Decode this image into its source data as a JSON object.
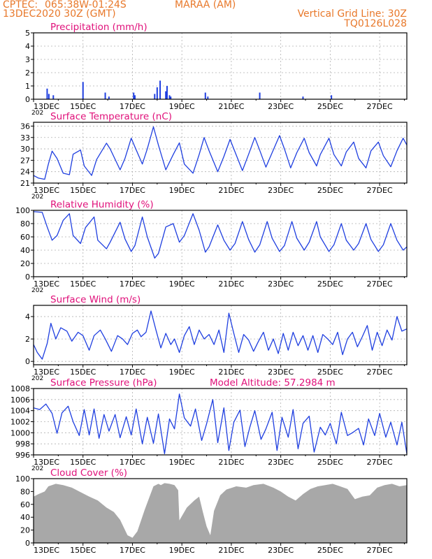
{
  "header": {
    "source": "CPTEC:",
    "coords": "065:38W-01:24S",
    "location": "MARAA (AM)",
    "init_time": "13DEC2020 30Z (GMT)",
    "vgrid": "Vertical Grid Line: 30Z",
    "code": "TQ0126L028"
  },
  "colors": {
    "header": "#e8782a",
    "title": "#e0107a",
    "series": "#1f3fe0",
    "cloud": "#a8a8a8",
    "grid": "#b0b0b0"
  },
  "x_axis": {
    "tick_labels": [
      "13DEC",
      "15DEC",
      "17DEC",
      "19DEC",
      "21DEC",
      "23DEC",
      "25DEC",
      "27DEC"
    ],
    "tick_days": [
      13,
      15,
      17,
      19,
      21,
      23,
      25,
      27
    ],
    "range_days": [
      13,
      28.1
    ],
    "year_fragment": "202"
  },
  "chart_data": [
    {
      "type": "bar",
      "title": "Precipitation (mm/h)",
      "ylim": [
        0,
        5
      ],
      "yticks": [
        0,
        1,
        2,
        3,
        4,
        5
      ],
      "grid": true,
      "x": [
        13.55,
        13.62,
        13.8,
        15.0,
        15.9,
        16.05,
        17.05,
        17.1,
        17.9,
        18.0,
        18.12,
        18.35,
        18.4,
        18.5,
        18.55,
        19.95,
        20.05,
        22.15,
        23.9,
        25.05
      ],
      "values": [
        0.8,
        0.4,
        0.3,
        1.3,
        0.5,
        0.2,
        0.5,
        0.3,
        0.4,
        0.9,
        1.4,
        0.6,
        1.0,
        0.3,
        0.2,
        0.5,
        0.2,
        0.5,
        0.2,
        0.3
      ]
    },
    {
      "type": "line",
      "title": "Surface Temperature (nC)",
      "ylim": [
        21,
        37
      ],
      "yticks": [
        21,
        24,
        27,
        30,
        33,
        36
      ],
      "grid": true,
      "x": [
        13.0,
        13.2,
        13.45,
        13.6,
        13.75,
        13.95,
        14.2,
        14.45,
        14.6,
        14.9,
        15.05,
        15.35,
        15.55,
        15.95,
        16.1,
        16.5,
        16.7,
        16.95,
        17.1,
        17.4,
        17.6,
        17.85,
        18.05,
        18.35,
        18.65,
        18.9,
        19.1,
        19.45,
        19.7,
        19.9,
        20.1,
        20.45,
        20.7,
        20.95,
        21.15,
        21.45,
        21.7,
        21.95,
        22.15,
        22.4,
        22.65,
        22.95,
        23.15,
        23.4,
        23.65,
        23.95,
        24.15,
        24.45,
        24.6,
        24.95,
        25.15,
        25.45,
        25.65,
        25.95,
        26.15,
        26.45,
        26.65,
        26.95,
        27.15,
        27.45,
        27.7,
        27.95,
        28.1
      ],
      "values": [
        23.0,
        22.3,
        22.0,
        26.0,
        29.4,
        27.5,
        23.6,
        23.2,
        28.6,
        29.7,
        25.5,
        23.0,
        27.2,
        31.5,
        30.0,
        24.5,
        27.5,
        32.8,
        30.5,
        26.0,
        30.0,
        35.8,
        31.0,
        24.5,
        28.5,
        31.6,
        26.0,
        23.6,
        28.5,
        33.0,
        29.5,
        24.0,
        28.0,
        32.5,
        29.2,
        24.3,
        28.6,
        33.0,
        29.6,
        25.2,
        29.0,
        33.5,
        30.0,
        25.0,
        29.0,
        32.8,
        29.0,
        25.5,
        28.5,
        32.8,
        28.5,
        25.5,
        29.2,
        31.8,
        27.5,
        25.0,
        29.5,
        31.8,
        28.2,
        25.3,
        29.5,
        32.8,
        31.0
      ]
    },
    {
      "type": "line",
      "title": "Relative Humidity (%)",
      "ylim": [
        0,
        100
      ],
      "yticks": [
        0,
        20,
        40,
        60,
        80,
        100
      ],
      "grid": true,
      "x": [
        13.0,
        13.35,
        13.55,
        13.75,
        13.95,
        14.2,
        14.45,
        14.6,
        14.9,
        15.1,
        15.45,
        15.6,
        15.95,
        16.1,
        16.5,
        16.7,
        16.95,
        17.1,
        17.4,
        17.6,
        17.9,
        18.05,
        18.35,
        18.65,
        18.9,
        19.1,
        19.45,
        19.7,
        19.95,
        20.1,
        20.45,
        20.7,
        20.95,
        21.15,
        21.45,
        21.7,
        21.95,
        22.15,
        22.45,
        22.65,
        22.95,
        23.15,
        23.45,
        23.65,
        23.95,
        24.15,
        24.45,
        24.6,
        24.95,
        25.15,
        25.45,
        25.65,
        25.95,
        26.15,
        26.45,
        26.65,
        26.95,
        27.15,
        27.45,
        27.7,
        27.95,
        28.1
      ],
      "values": [
        98.0,
        97.0,
        75.0,
        55.0,
        62.0,
        85.0,
        95.0,
        62.0,
        50.0,
        74.0,
        90.0,
        55.0,
        42.0,
        52.0,
        82.0,
        57.0,
        38.0,
        47.0,
        90.0,
        60.0,
        28.0,
        35.0,
        75.0,
        80.0,
        52.0,
        62.0,
        95.0,
        70.0,
        37.0,
        45.0,
        78.0,
        55.0,
        40.0,
        50.0,
        83.0,
        56.0,
        37.0,
        48.0,
        83.0,
        58.0,
        38.0,
        47.0,
        83.0,
        58.0,
        40.0,
        52.0,
        83.0,
        60.0,
        38.0,
        48.0,
        80.0,
        55.0,
        40.0,
        50.0,
        80.0,
        56.0,
        38.0,
        48.0,
        80.0,
        55.0,
        40.0,
        45.0
      ]
    },
    {
      "type": "line",
      "title": "Surface Wind (m/s)",
      "ylim": [
        -0.3,
        5
      ],
      "yticks": [
        0,
        2,
        4
      ],
      "grid": true,
      "x": [
        13.0,
        13.15,
        13.35,
        13.55,
        13.7,
        13.9,
        14.1,
        14.35,
        14.55,
        14.8,
        15.0,
        15.25,
        15.45,
        15.7,
        15.9,
        16.15,
        16.4,
        16.6,
        16.8,
        17.0,
        17.2,
        17.35,
        17.55,
        17.75,
        17.95,
        18.15,
        18.35,
        18.55,
        18.7,
        18.9,
        19.1,
        19.3,
        19.5,
        19.7,
        19.9,
        20.1,
        20.3,
        20.5,
        20.7,
        20.9,
        21.1,
        21.3,
        21.5,
        21.7,
        21.9,
        22.1,
        22.3,
        22.5,
        22.7,
        22.9,
        23.1,
        23.3,
        23.5,
        23.7,
        23.9,
        24.1,
        24.3,
        24.5,
        24.7,
        24.9,
        25.1,
        25.3,
        25.5,
        25.7,
        25.9,
        26.1,
        26.3,
        26.5,
        26.7,
        26.9,
        27.1,
        27.3,
        27.5,
        27.7,
        27.9,
        28.1
      ],
      "values": [
        1.5,
        0.8,
        0.2,
        1.6,
        3.4,
        2.0,
        3.0,
        2.7,
        1.8,
        2.6,
        2.3,
        1.0,
        2.3,
        2.8,
        2.0,
        0.9,
        2.3,
        2.0,
        1.5,
        2.5,
        2.8,
        2.2,
        2.6,
        4.5,
        2.8,
        1.2,
        2.5,
        1.5,
        2.0,
        0.8,
        2.3,
        3.1,
        1.5,
        2.8,
        2.0,
        2.4,
        1.5,
        2.8,
        0.8,
        4.3,
        2.5,
        0.8,
        2.4,
        1.9,
        0.9,
        1.8,
        2.6,
        1.0,
        2.0,
        0.7,
        2.5,
        1.0,
        2.6,
        1.4,
        2.3,
        1.0,
        2.3,
        0.8,
        2.4,
        2.0,
        1.5,
        2.6,
        0.6,
        2.0,
        2.6,
        1.3,
        2.2,
        3.2,
        1.0,
        2.6,
        1.4,
        2.8,
        1.9,
        4.0,
        2.7,
        2.9
      ]
    },
    {
      "type": "line",
      "title": "Surface Pressure (hPa)",
      "annotation": "Model Altitude: 57.2984 m",
      "ylim": [
        996,
        1008
      ],
      "yticks": [
        996,
        998,
        1000,
        1002,
        1004,
        1006,
        1008
      ],
      "grid": true,
      "x": [
        13.0,
        13.25,
        13.5,
        13.75,
        13.95,
        14.15,
        14.4,
        14.6,
        14.85,
        15.05,
        15.25,
        15.45,
        15.65,
        15.85,
        16.05,
        16.3,
        16.5,
        16.75,
        16.95,
        17.15,
        17.4,
        17.6,
        17.85,
        18.05,
        18.3,
        18.5,
        18.7,
        18.9,
        19.1,
        19.35,
        19.55,
        19.8,
        20.0,
        20.25,
        20.45,
        20.7,
        20.9,
        21.1,
        21.35,
        21.55,
        21.75,
        21.95,
        22.2,
        22.4,
        22.65,
        22.85,
        23.05,
        23.3,
        23.5,
        23.7,
        23.9,
        24.15,
        24.35,
        24.6,
        24.8,
        25.0,
        25.25,
        25.45,
        25.7,
        25.9,
        26.15,
        26.35,
        26.55,
        26.8,
        27.0,
        27.25,
        27.45,
        27.7,
        27.9,
        28.1
      ],
      "values": [
        1004.5,
        1004.2,
        1005.2,
        1003.5,
        999.9,
        1003.6,
        1004.8,
        1002.0,
        999.5,
        1004.2,
        999.6,
        1004.3,
        999.0,
        1003.3,
        1000.3,
        1003.3,
        999.1,
        1002.9,
        999.6,
        1004.3,
        998.0,
        1002.8,
        998.1,
        1003.4,
        996.2,
        1002.5,
        1000.7,
        1007.0,
        1002.7,
        1001.2,
        1004.3,
        998.6,
        1001.6,
        1006.0,
        998.2,
        1004.5,
        996.8,
        1001.9,
        1004.1,
        997.5,
        1001.0,
        1004.0,
        998.8,
        1000.7,
        1003.7,
        996.8,
        1002.8,
        999.2,
        1004.2,
        997.1,
        1001.7,
        1003.0,
        996.5,
        1001.0,
        999.6,
        1001.7,
        998.0,
        1003.7,
        999.5,
        1000.0,
        1000.8,
        997.8,
        1002.5,
        999.5,
        1003.5,
        999.2,
        1001.9,
        997.8,
        1001.9,
        996.2
      ]
    },
    {
      "type": "area",
      "title": "Cloud Cover (%)",
      "ylim": [
        0,
        100
      ],
      "yticks": [
        0,
        20,
        40,
        60,
        80,
        100
      ],
      "grid": false,
      "x": [
        13.0,
        13.2,
        13.45,
        13.6,
        13.9,
        14.2,
        14.55,
        14.85,
        15.2,
        15.6,
        15.95,
        16.25,
        16.5,
        16.8,
        17.0,
        17.2,
        17.5,
        17.85,
        18.05,
        18.15,
        18.3,
        18.5,
        18.7,
        18.85,
        18.9,
        19.2,
        19.5,
        19.7,
        19.85,
        20.0,
        20.15,
        20.3,
        20.55,
        20.8,
        21.2,
        21.6,
        21.9,
        22.3,
        22.7,
        23.0,
        23.3,
        23.6,
        23.9,
        24.2,
        24.5,
        24.8,
        25.1,
        25.4,
        25.7,
        26.0,
        26.3,
        26.6,
        26.9,
        27.2,
        27.5,
        27.8,
        28.1
      ],
      "values": [
        72,
        76,
        80,
        88,
        92,
        90,
        86,
        80,
        73,
        66,
        55,
        48,
        36,
        12,
        8,
        18,
        52,
        88,
        92,
        90,
        93,
        92,
        90,
        82,
        35,
        55,
        66,
        72,
        48,
        26,
        12,
        50,
        74,
        83,
        88,
        86,
        90,
        92,
        86,
        80,
        72,
        66,
        76,
        84,
        88,
        90,
        92,
        88,
        84,
        68,
        72,
        74,
        86,
        90,
        92,
        88,
        90
      ]
    }
  ]
}
